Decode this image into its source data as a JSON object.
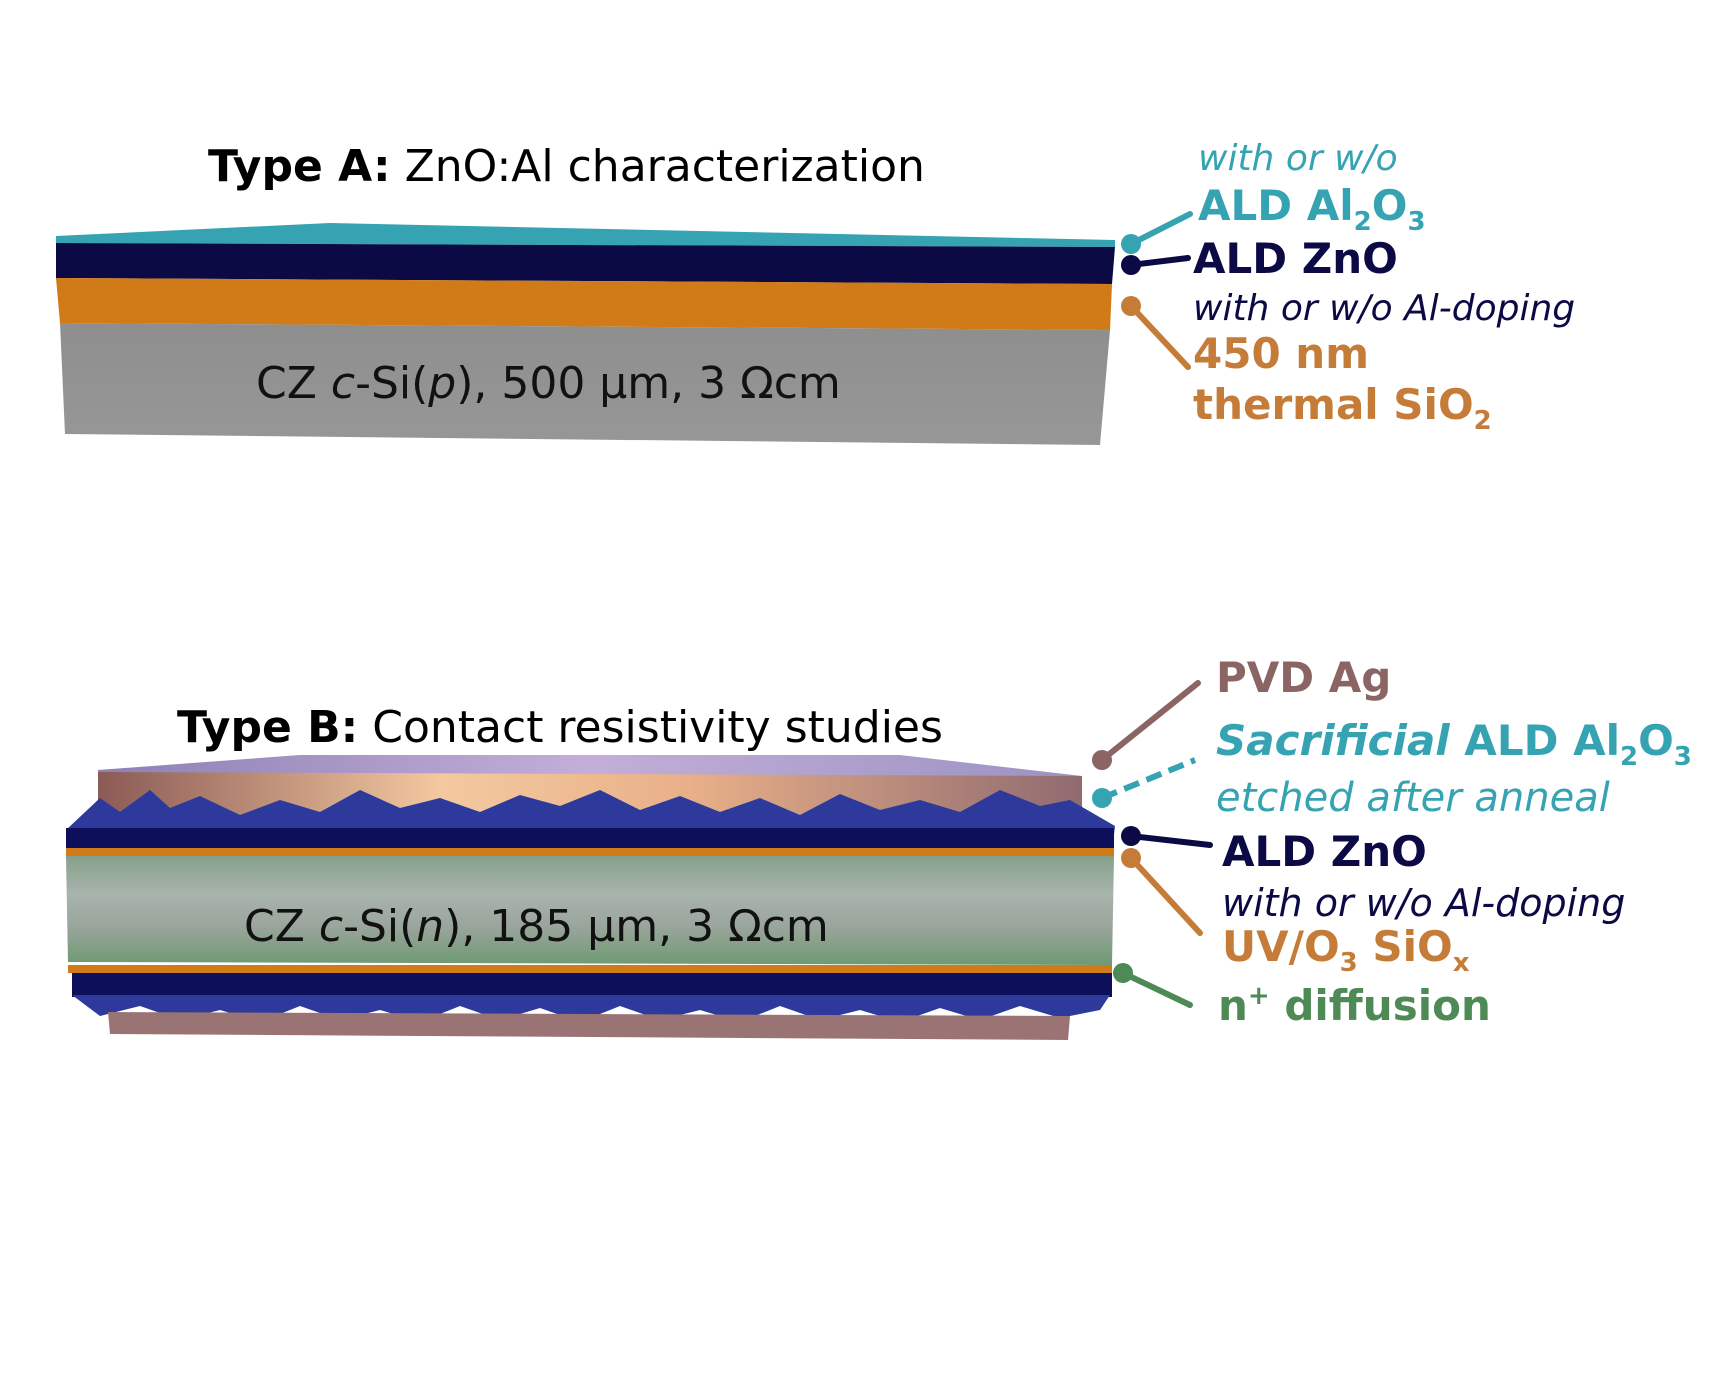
{
  "colors": {
    "al2o3": "#35a3b1",
    "zno": "#0b0a45",
    "sio2": "#c47c38",
    "ag": "#8b6464",
    "n_diffusion": "#4e8a55",
    "substrate": "#909090"
  },
  "typeA": {
    "title_bold": "Type A:",
    "title_rest": " ZnO:Al characterization",
    "substrate_pre": "CZ ",
    "substrate_it": "c",
    "substrate_mid": "-Si(",
    "substrate_it2": "p",
    "substrate_post": "), 500 µm, 3 Ωcm",
    "label_al2o3_note": "with or w/o",
    "label_al2o3": "ALD Al",
    "label_al2o3_sub1": "2",
    "label_al2o3_o": "O",
    "label_al2o3_sub2": "3",
    "label_zno": "ALD ZnO",
    "label_zno_note": "with or w/o Al-doping",
    "label_sio2_line1": "450 nm",
    "label_sio2_line2": "thermal SiO",
    "label_sio2_sub": "2"
  },
  "typeB": {
    "title_bold": "Type B:",
    "title_rest": " Contact resistivity studies",
    "substrate_pre": "CZ ",
    "substrate_it": "c",
    "substrate_mid": "-Si(",
    "substrate_it2": "n",
    "substrate_post": "), 185 µm, 3 Ωcm",
    "label_ag": "PVD Ag",
    "label_sac_it": "Sacrificial",
    "label_sac_rest": " ALD Al",
    "label_sac_sub1": "2",
    "label_sac_o": "O",
    "label_sac_sub2": "3",
    "label_sac_note": "etched after anneal",
    "label_zno": "ALD ZnO",
    "label_zno_note": "with or w/o Al-doping",
    "label_uv": "UV/O",
    "label_uv_sub": "3",
    "label_uv_rest": " SiO",
    "label_uv_sub2": "x",
    "label_ndiff": "n",
    "label_ndiff_sup": "+",
    "label_ndiff_rest": " diffusion"
  }
}
